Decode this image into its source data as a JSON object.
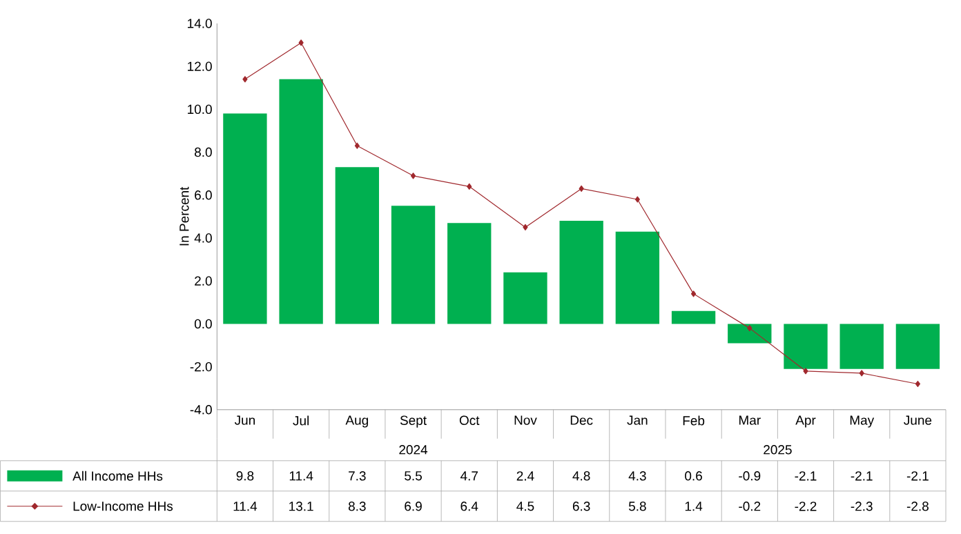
{
  "chart_data": {
    "type": "bar",
    "ylabel": "In Percent",
    "categories": [
      "Jun",
      "Jul",
      "Aug",
      "Sept",
      "Oct",
      "Nov",
      "Dec",
      "Jan",
      "Feb",
      "Mar",
      "Apr",
      "May",
      "June"
    ],
    "series": [
      {
        "name": "All Income HHs",
        "color": "#00b050",
        "values": [
          9.8,
          11.4,
          7.3,
          5.5,
          4.7,
          2.4,
          4.8,
          4.3,
          0.6,
          -0.9,
          -2.1,
          -2.1,
          -2.1
        ]
      },
      {
        "name": "Low-Income HHs",
        "type": "line",
        "color": "#a0282d",
        "marker": "diamond",
        "values": [
          11.4,
          13.1,
          8.3,
          6.9,
          6.4,
          4.5,
          6.3,
          5.8,
          1.4,
          -0.2,
          -2.2,
          -2.3,
          -2.8
        ]
      }
    ],
    "ylim": [
      -4,
      14
    ],
    "yticks": [
      {
        "value": -4,
        "label": "-4.0"
      },
      {
        "value": -2,
        "label": "-2.0"
      },
      {
        "value": 0,
        "label": "0.0"
      },
      {
        "value": 2,
        "label": "2.0"
      },
      {
        "value": 4,
        "label": "4.0"
      },
      {
        "value": 6,
        "label": "6.0"
      },
      {
        "value": 8,
        "label": "8.0"
      },
      {
        "value": 10,
        "label": "10.0"
      },
      {
        "value": 12,
        "label": "12.0"
      },
      {
        "value": 14,
        "label": "14.0"
      }
    ],
    "annotations": [
      "2024",
      "2025"
    ],
    "data_labels": true,
    "legend": "bottom",
    "grid": false
  }
}
